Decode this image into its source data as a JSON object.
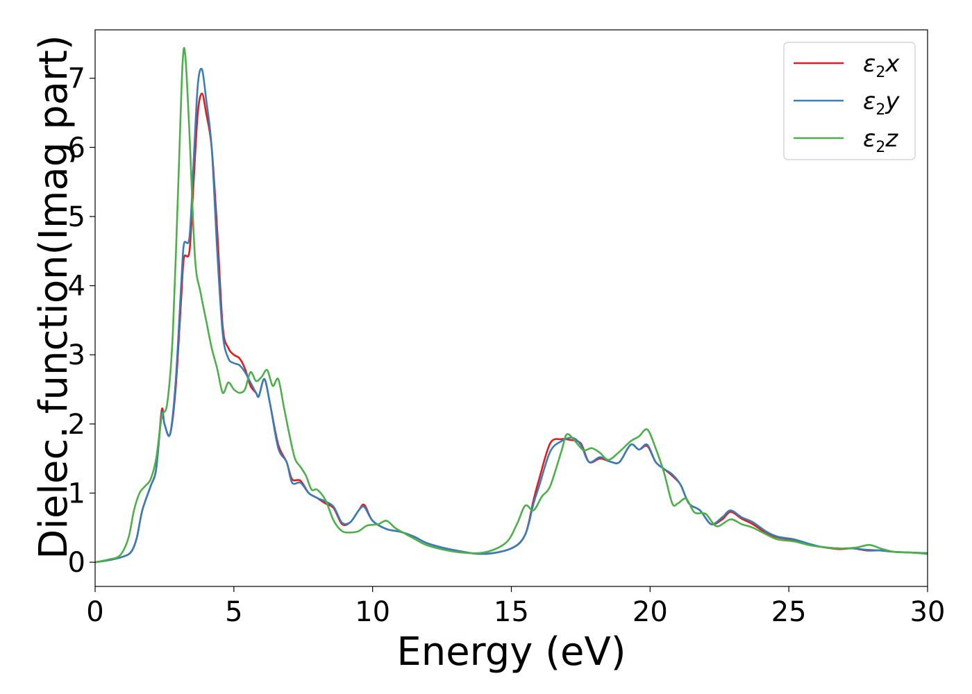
{
  "chart_data": {
    "type": "line",
    "title": "",
    "xlabel": "Energy (eV)",
    "ylabel": "Dielec. function(Imag part)",
    "xlim": [
      0,
      30
    ],
    "ylim": [
      -0.35,
      7.7
    ],
    "xticks": [
      0,
      5,
      10,
      15,
      20,
      25,
      30
    ],
    "yticks": [
      0,
      1,
      2,
      3,
      4,
      5,
      6,
      7
    ],
    "grid": false,
    "legend_position": "top-right",
    "series": [
      {
        "name": "ε2x",
        "legend_base": "ε",
        "legend_sub": "2",
        "legend_tail": "x",
        "color": "#e41a1c",
        "points": [
          [
            0,
            0
          ],
          [
            0.5,
            0.03
          ],
          [
            1.0,
            0.08
          ],
          [
            1.3,
            0.15
          ],
          [
            1.5,
            0.35
          ],
          [
            1.7,
            0.75
          ],
          [
            2.0,
            1.1
          ],
          [
            2.2,
            1.35
          ],
          [
            2.4,
            2.2
          ],
          [
            2.5,
            2.0
          ],
          [
            2.7,
            1.85
          ],
          [
            2.9,
            2.5
          ],
          [
            3.1,
            3.8
          ],
          [
            3.2,
            4.4
          ],
          [
            3.4,
            4.5
          ],
          [
            3.55,
            5.5
          ],
          [
            3.7,
            6.5
          ],
          [
            3.85,
            6.78
          ],
          [
            4.0,
            6.5
          ],
          [
            4.2,
            6.0
          ],
          [
            4.4,
            4.8
          ],
          [
            4.6,
            3.4
          ],
          [
            4.8,
            3.1
          ],
          [
            5.0,
            3.0
          ],
          [
            5.2,
            2.95
          ],
          [
            5.4,
            2.8
          ],
          [
            5.6,
            2.55
          ],
          [
            5.8,
            2.45
          ],
          [
            5.9,
            2.4
          ],
          [
            6.1,
            2.65
          ],
          [
            6.3,
            2.3
          ],
          [
            6.6,
            1.7
          ],
          [
            6.9,
            1.45
          ],
          [
            7.1,
            1.2
          ],
          [
            7.4,
            1.18
          ],
          [
            7.7,
            1.0
          ],
          [
            8.0,
            0.93
          ],
          [
            8.3,
            0.85
          ],
          [
            8.6,
            0.78
          ],
          [
            8.9,
            0.55
          ],
          [
            9.2,
            0.58
          ],
          [
            9.5,
            0.75
          ],
          [
            9.7,
            0.83
          ],
          [
            10.0,
            0.6
          ],
          [
            10.5,
            0.48
          ],
          [
            11.0,
            0.44
          ],
          [
            11.5,
            0.37
          ],
          [
            12.0,
            0.27
          ],
          [
            13.0,
            0.17
          ],
          [
            14.0,
            0.12
          ],
          [
            15.0,
            0.2
          ],
          [
            15.5,
            0.4
          ],
          [
            15.8,
            0.9
          ],
          [
            16.0,
            1.2
          ],
          [
            16.4,
            1.72
          ],
          [
            16.8,
            1.78
          ],
          [
            17.1,
            1.77
          ],
          [
            17.5,
            1.72
          ],
          [
            17.8,
            1.45
          ],
          [
            18.2,
            1.5
          ],
          [
            18.6,
            1.45
          ],
          [
            18.9,
            1.45
          ],
          [
            19.3,
            1.7
          ],
          [
            19.6,
            1.63
          ],
          [
            19.9,
            1.68
          ],
          [
            20.2,
            1.45
          ],
          [
            20.5,
            1.35
          ],
          [
            20.8,
            1.25
          ],
          [
            21.1,
            1.12
          ],
          [
            21.4,
            0.85
          ],
          [
            21.8,
            0.75
          ],
          [
            22.2,
            0.55
          ],
          [
            22.6,
            0.62
          ],
          [
            22.9,
            0.73
          ],
          [
            23.3,
            0.63
          ],
          [
            23.7,
            0.55
          ],
          [
            24.2,
            0.42
          ],
          [
            24.6,
            0.36
          ],
          [
            25.2,
            0.32
          ],
          [
            25.7,
            0.26
          ],
          [
            26.2,
            0.22
          ],
          [
            26.8,
            0.19
          ],
          [
            27.3,
            0.2
          ],
          [
            27.8,
            0.17
          ],
          [
            28.3,
            0.17
          ],
          [
            28.8,
            0.15
          ],
          [
            29.4,
            0.14
          ],
          [
            30.0,
            0.13
          ]
        ]
      },
      {
        "name": "ε2y",
        "legend_base": "ε",
        "legend_sub": "2",
        "legend_tail": "y",
        "color": "#377eb8",
        "points": [
          [
            0,
            0
          ],
          [
            0.5,
            0.03
          ],
          [
            1.0,
            0.08
          ],
          [
            1.3,
            0.15
          ],
          [
            1.5,
            0.35
          ],
          [
            1.7,
            0.75
          ],
          [
            2.0,
            1.1
          ],
          [
            2.2,
            1.35
          ],
          [
            2.4,
            2.15
          ],
          [
            2.5,
            2.0
          ],
          [
            2.7,
            1.85
          ],
          [
            2.9,
            2.6
          ],
          [
            3.1,
            4.0
          ],
          [
            3.2,
            4.6
          ],
          [
            3.4,
            4.7
          ],
          [
            3.55,
            5.8
          ],
          [
            3.7,
            6.9
          ],
          [
            3.85,
            7.13
          ],
          [
            4.0,
            6.7
          ],
          [
            4.2,
            6.0
          ],
          [
            4.4,
            4.5
          ],
          [
            4.6,
            3.3
          ],
          [
            4.8,
            2.95
          ],
          [
            5.0,
            2.88
          ],
          [
            5.2,
            2.85
          ],
          [
            5.4,
            2.75
          ],
          [
            5.6,
            2.6
          ],
          [
            5.8,
            2.45
          ],
          [
            5.9,
            2.4
          ],
          [
            6.1,
            2.65
          ],
          [
            6.3,
            2.3
          ],
          [
            6.6,
            1.65
          ],
          [
            6.9,
            1.45
          ],
          [
            7.1,
            1.15
          ],
          [
            7.4,
            1.15
          ],
          [
            7.7,
            1.0
          ],
          [
            8.0,
            0.93
          ],
          [
            8.3,
            0.88
          ],
          [
            8.6,
            0.8
          ],
          [
            8.9,
            0.57
          ],
          [
            9.2,
            0.58
          ],
          [
            9.5,
            0.75
          ],
          [
            9.7,
            0.8
          ],
          [
            10.0,
            0.6
          ],
          [
            10.5,
            0.48
          ],
          [
            11.0,
            0.44
          ],
          [
            11.5,
            0.37
          ],
          [
            12.0,
            0.27
          ],
          [
            13.0,
            0.17
          ],
          [
            14.0,
            0.12
          ],
          [
            15.0,
            0.2
          ],
          [
            15.5,
            0.4
          ],
          [
            15.8,
            0.85
          ],
          [
            16.0,
            1.1
          ],
          [
            16.4,
            1.6
          ],
          [
            16.8,
            1.75
          ],
          [
            17.2,
            1.8
          ],
          [
            17.5,
            1.7
          ],
          [
            17.8,
            1.45
          ],
          [
            18.2,
            1.52
          ],
          [
            18.6,
            1.45
          ],
          [
            18.9,
            1.45
          ],
          [
            19.3,
            1.7
          ],
          [
            19.6,
            1.63
          ],
          [
            19.9,
            1.7
          ],
          [
            20.2,
            1.45
          ],
          [
            20.5,
            1.35
          ],
          [
            20.8,
            1.27
          ],
          [
            21.1,
            1.12
          ],
          [
            21.4,
            0.85
          ],
          [
            21.8,
            0.75
          ],
          [
            22.2,
            0.55
          ],
          [
            22.6,
            0.65
          ],
          [
            22.9,
            0.75
          ],
          [
            23.3,
            0.65
          ],
          [
            23.7,
            0.58
          ],
          [
            24.2,
            0.44
          ],
          [
            24.6,
            0.37
          ],
          [
            25.2,
            0.33
          ],
          [
            25.7,
            0.27
          ],
          [
            26.2,
            0.22
          ],
          [
            26.8,
            0.2
          ],
          [
            27.3,
            0.2
          ],
          [
            27.8,
            0.18
          ],
          [
            28.3,
            0.17
          ],
          [
            28.8,
            0.15
          ],
          [
            29.4,
            0.14
          ],
          [
            30.0,
            0.13
          ]
        ]
      },
      {
        "name": "ε2z",
        "legend_base": "ε",
        "legend_sub": "2",
        "legend_tail": "z",
        "color": "#4daf4a",
        "points": [
          [
            0,
            0
          ],
          [
            0.5,
            0.04
          ],
          [
            0.9,
            0.1
          ],
          [
            1.2,
            0.35
          ],
          [
            1.4,
            0.75
          ],
          [
            1.6,
            1.0
          ],
          [
            1.8,
            1.1
          ],
          [
            2.0,
            1.2
          ],
          [
            2.2,
            1.5
          ],
          [
            2.4,
            2.1
          ],
          [
            2.6,
            2.3
          ],
          [
            2.8,
            3.3
          ],
          [
            3.0,
            5.5
          ],
          [
            3.15,
            7.2
          ],
          [
            3.25,
            7.33
          ],
          [
            3.4,
            6.2
          ],
          [
            3.6,
            4.4
          ],
          [
            3.8,
            3.9
          ],
          [
            4.0,
            3.5
          ],
          [
            4.2,
            3.1
          ],
          [
            4.4,
            2.8
          ],
          [
            4.6,
            2.45
          ],
          [
            4.8,
            2.6
          ],
          [
            5.0,
            2.5
          ],
          [
            5.2,
            2.45
          ],
          [
            5.4,
            2.5
          ],
          [
            5.6,
            2.75
          ],
          [
            5.8,
            2.62
          ],
          [
            6.0,
            2.68
          ],
          [
            6.2,
            2.78
          ],
          [
            6.4,
            2.55
          ],
          [
            6.6,
            2.65
          ],
          [
            6.8,
            2.25
          ],
          [
            7.0,
            1.85
          ],
          [
            7.2,
            1.5
          ],
          [
            7.4,
            1.38
          ],
          [
            7.6,
            1.25
          ],
          [
            7.8,
            1.05
          ],
          [
            8.0,
            1.05
          ],
          [
            8.3,
            0.9
          ],
          [
            8.6,
            0.6
          ],
          [
            8.9,
            0.45
          ],
          [
            9.2,
            0.43
          ],
          [
            9.5,
            0.45
          ],
          [
            9.8,
            0.53
          ],
          [
            10.2,
            0.55
          ],
          [
            10.5,
            0.6
          ],
          [
            10.8,
            0.5
          ],
          [
            11.0,
            0.45
          ],
          [
            11.5,
            0.34
          ],
          [
            12.0,
            0.24
          ],
          [
            13.0,
            0.15
          ],
          [
            14.0,
            0.14
          ],
          [
            14.8,
            0.28
          ],
          [
            15.2,
            0.55
          ],
          [
            15.5,
            0.82
          ],
          [
            15.8,
            0.75
          ],
          [
            16.1,
            0.95
          ],
          [
            16.4,
            1.1
          ],
          [
            16.8,
            1.6
          ],
          [
            17.0,
            1.85
          ],
          [
            17.3,
            1.75
          ],
          [
            17.6,
            1.62
          ],
          [
            17.9,
            1.65
          ],
          [
            18.2,
            1.58
          ],
          [
            18.5,
            1.48
          ],
          [
            18.9,
            1.6
          ],
          [
            19.3,
            1.75
          ],
          [
            19.6,
            1.82
          ],
          [
            19.9,
            1.92
          ],
          [
            20.2,
            1.65
          ],
          [
            20.5,
            1.3
          ],
          [
            20.8,
            0.85
          ],
          [
            21.0,
            0.85
          ],
          [
            21.3,
            0.92
          ],
          [
            21.6,
            0.72
          ],
          [
            22.0,
            0.7
          ],
          [
            22.4,
            0.52
          ],
          [
            22.9,
            0.62
          ],
          [
            23.3,
            0.55
          ],
          [
            23.7,
            0.5
          ],
          [
            24.2,
            0.4
          ],
          [
            24.6,
            0.33
          ],
          [
            25.2,
            0.3
          ],
          [
            25.7,
            0.25
          ],
          [
            26.2,
            0.22
          ],
          [
            26.8,
            0.2
          ],
          [
            27.4,
            0.21
          ],
          [
            27.9,
            0.25
          ],
          [
            28.3,
            0.2
          ],
          [
            28.8,
            0.15
          ],
          [
            29.4,
            0.14
          ],
          [
            30.0,
            0.12
          ]
        ]
      }
    ]
  }
}
